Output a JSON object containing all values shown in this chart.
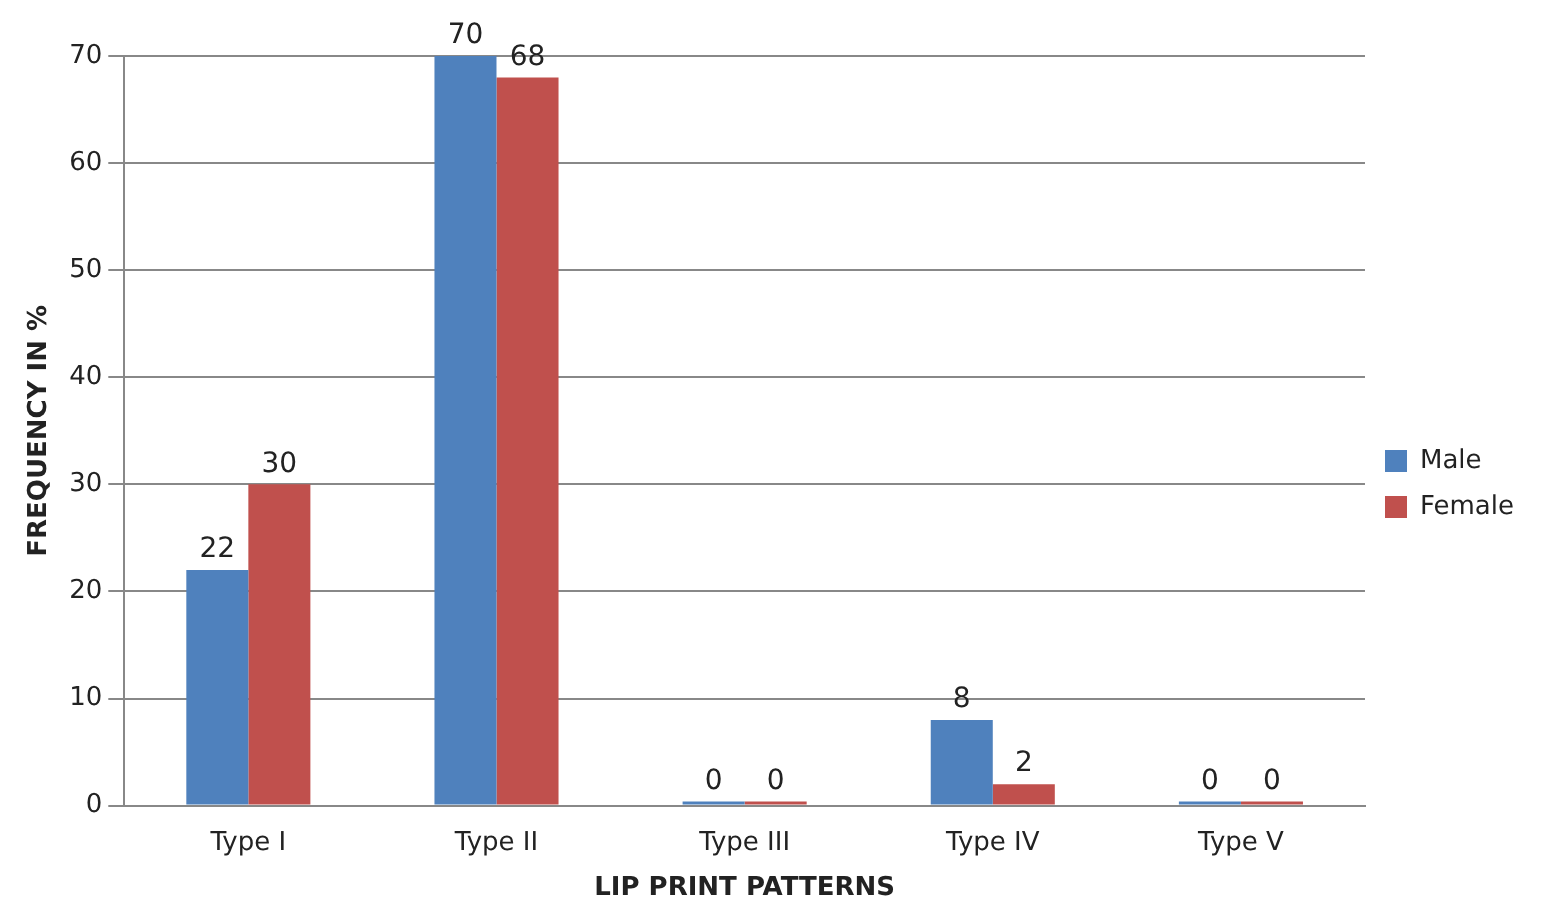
{
  "chart_data": {
    "type": "bar",
    "xlabel": "LIP PRINT PATTERNS",
    "ylabel": "FREQUENCY IN %",
    "categories": [
      "Type I",
      "Type II",
      "Type III",
      "Type IV",
      "Type V"
    ],
    "series": [
      {
        "name": "Male",
        "color": "#4f81bd",
        "values": [
          22,
          70,
          0,
          8,
          0
        ]
      },
      {
        "name": "Female",
        "color": "#c0504d",
        "values": [
          30,
          68,
          0,
          2,
          0
        ]
      }
    ],
    "ylim": [
      0,
      70
    ],
    "yticks": [
      0,
      10,
      20,
      30,
      40,
      50,
      60,
      70
    ],
    "grid": "y",
    "legend": "right",
    "data_labels": true
  }
}
